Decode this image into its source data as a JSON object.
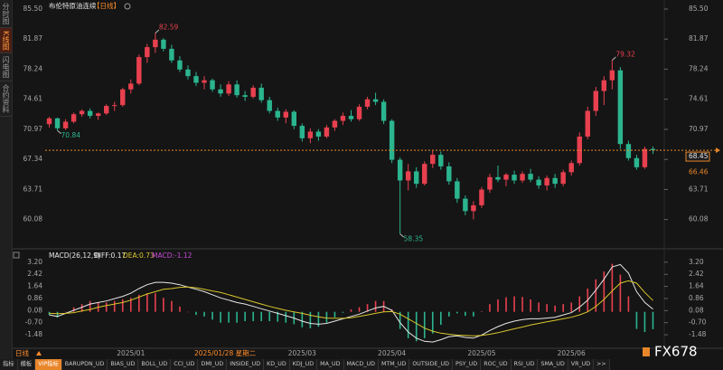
{
  "sidebar_tabs": [
    "分时图",
    "K线图",
    "闪电图",
    "合约资料"
  ],
  "chart_data": [
    {
      "type": "candlestick",
      "title": "布伦特原油连续",
      "period": "【日线】",
      "crosshair_label": "2025/01/28 星期二",
      "categories": [
        null,
        null,
        null,
        null,
        null,
        null,
        null,
        null,
        null,
        null,
        "2025/01",
        null,
        null,
        null,
        null,
        null,
        null,
        null,
        null,
        null,
        null,
        null,
        null,
        null,
        null,
        null,
        null,
        null,
        null,
        null,
        null,
        "2025/03",
        null,
        null,
        null,
        null,
        null,
        null,
        null,
        null,
        null,
        null,
        "2025/04",
        null,
        null,
        null,
        null,
        null,
        null,
        null,
        null,
        null,
        null,
        "2025/05",
        null,
        null,
        null,
        null,
        null,
        null,
        null,
        null,
        null,
        null,
        "2025/06",
        null,
        null,
        null,
        null,
        null,
        null,
        null,
        null,
        null,
        null
      ],
      "ohlc": [
        [
          71.6,
          72.5,
          71.2,
          72.3
        ],
        [
          72.3,
          72.4,
          70.84,
          71.1
        ],
        [
          71.1,
          72.2,
          70.9,
          71.9
        ],
        [
          71.9,
          73.0,
          71.7,
          72.8
        ],
        [
          72.8,
          73.4,
          72.5,
          73.2
        ],
        [
          73.2,
          73.5,
          72.3,
          72.6
        ],
        [
          72.6,
          73.0,
          72.1,
          72.9
        ],
        [
          72.9,
          74.0,
          72.7,
          73.8
        ],
        [
          73.8,
          74.3,
          73.2,
          73.9
        ],
        [
          73.9,
          76.0,
          73.7,
          75.8
        ],
        [
          75.8,
          77.0,
          75.3,
          76.5
        ],
        [
          76.5,
          80.0,
          76.3,
          79.7
        ],
        [
          79.7,
          81.3,
          79.0,
          80.9
        ],
        [
          80.9,
          82.59,
          80.2,
          81.8
        ],
        [
          81.8,
          82.0,
          80.4,
          80.7
        ],
        [
          80.7,
          81.2,
          79.0,
          79.3
        ],
        [
          79.3,
          79.8,
          77.9,
          78.2
        ],
        [
          78.2,
          78.7,
          77.0,
          77.4
        ],
        [
          77.4,
          77.9,
          76.2,
          76.6
        ],
        [
          76.6,
          77.4,
          75.8,
          76.9
        ],
        [
          76.9,
          77.1,
          75.5,
          75.8
        ],
        [
          75.8,
          76.4,
          74.9,
          75.3
        ],
        [
          75.3,
          76.8,
          75.0,
          76.4
        ],
        [
          76.4,
          76.9,
          74.8,
          75.1
        ],
        [
          75.1,
          75.6,
          74.4,
          74.9
        ],
        [
          74.9,
          76.3,
          74.7,
          76.0
        ],
        [
          76.0,
          76.5,
          74.2,
          74.5
        ],
        [
          74.5,
          74.9,
          72.9,
          73.2
        ],
        [
          73.2,
          73.6,
          72.0,
          72.4
        ],
        [
          72.4,
          73.4,
          71.7,
          73.1
        ],
        [
          73.1,
          73.3,
          71.0,
          71.4
        ],
        [
          71.4,
          71.7,
          69.5,
          69.9
        ],
        [
          69.9,
          71.1,
          69.3,
          70.7
        ],
        [
          70.7,
          71.0,
          69.6,
          70.1
        ],
        [
          70.1,
          71.5,
          69.9,
          71.2
        ],
        [
          71.2,
          72.2,
          70.8,
          72.0
        ],
        [
          72.0,
          73.0,
          71.5,
          72.6
        ],
        [
          72.6,
          73.3,
          71.9,
          72.2
        ],
        [
          72.2,
          74.0,
          72.0,
          73.7
        ],
        [
          73.7,
          74.9,
          73.4,
          74.6
        ],
        [
          74.6,
          75.4,
          73.9,
          74.3
        ],
        [
          74.3,
          74.6,
          71.6,
          72.0
        ],
        [
          72.0,
          72.2,
          66.9,
          67.3
        ],
        [
          67.3,
          67.6,
          58.35,
          64.8
        ],
        [
          64.8,
          66.8,
          63.6,
          65.9
        ],
        [
          65.9,
          66.4,
          63.9,
          64.4
        ],
        [
          64.4,
          67.1,
          64.2,
          66.8
        ],
        [
          66.8,
          68.4,
          66.3,
          67.9
        ],
        [
          67.9,
          68.3,
          66.1,
          66.5
        ],
        [
          66.5,
          67.0,
          64.3,
          64.7
        ],
        [
          64.7,
          65.1,
          62.1,
          62.6
        ],
        [
          62.6,
          63.0,
          60.6,
          61.1
        ],
        [
          61.1,
          62.3,
          60.1,
          61.8
        ],
        [
          61.8,
          64.0,
          61.5,
          63.7
        ],
        [
          63.7,
          65.6,
          63.3,
          65.2
        ],
        [
          65.2,
          66.6,
          64.6,
          64.9
        ],
        [
          64.9,
          65.7,
          64.1,
          65.5
        ],
        [
          65.5,
          66.0,
          64.4,
          64.8
        ],
        [
          64.8,
          65.9,
          64.5,
          65.6
        ],
        [
          65.6,
          66.2,
          64.6,
          64.9
        ],
        [
          64.9,
          65.3,
          63.8,
          64.2
        ],
        [
          64.2,
          65.4,
          63.6,
          65.1
        ],
        [
          65.1,
          65.6,
          63.9,
          64.4
        ],
        [
          64.4,
          66.1,
          64.1,
          65.8
        ],
        [
          65.8,
          67.2,
          65.4,
          66.9
        ],
        [
          66.9,
          70.6,
          66.6,
          70.1
        ],
        [
          70.1,
          73.7,
          69.8,
          73.2
        ],
        [
          73.2,
          76.1,
          72.6,
          75.6
        ],
        [
          75.6,
          77.4,
          73.9,
          76.9
        ],
        [
          76.9,
          79.32,
          75.8,
          78.1
        ],
        [
          78.1,
          78.5,
          68.6,
          69.2
        ],
        [
          69.2,
          69.6,
          67.2,
          67.5
        ],
        [
          67.5,
          67.9,
          66.1,
          66.4
        ],
        [
          66.4,
          68.9,
          66.2,
          68.6
        ],
        [
          68.6,
          68.9,
          68.0,
          68.45
        ]
      ],
      "up_color": "#e8404f",
      "down_color": "#2bb58f",
      "last_price_color": "#e8862a",
      "reference_price": 66.46,
      "ylim": [
        59.5,
        85.5
      ],
      "yticks": [
        {
          "value": 85.5,
          "label": "85.50"
        },
        81.87,
        78.24,
        74.61,
        70.97,
        67.34,
        63.71,
        60.08
      ]
    },
    {
      "type": "macd",
      "title": "MACD(26,12,9)",
      "series": [
        {
          "label": "DIFF:0.17",
          "color": "#e6e6e6",
          "values": [
            -0.2,
            -0.3,
            -0.1,
            0.1,
            0.3,
            0.5,
            0.6,
            0.7,
            0.85,
            1.0,
            1.2,
            1.5,
            1.75,
            1.9,
            1.9,
            1.85,
            1.75,
            1.6,
            1.45,
            1.3,
            1.1,
            0.9,
            0.75,
            0.6,
            0.5,
            0.35,
            0.2,
            0.05,
            -0.1,
            -0.25,
            -0.4,
            -0.6,
            -0.75,
            -0.8,
            -0.75,
            -0.6,
            -0.45,
            -0.3,
            -0.15,
            0.05,
            0.25,
            0.35,
            0.1,
            -0.7,
            -1.3,
            -1.7,
            -1.9,
            -1.95,
            -1.8,
            -1.6,
            -1.55,
            -1.65,
            -1.7,
            -1.5,
            -1.2,
            -0.95,
            -0.75,
            -0.6,
            -0.5,
            -0.45,
            -0.45,
            -0.4,
            -0.35,
            -0.2,
            -0.05,
            0.3,
            0.75,
            1.4,
            2.1,
            2.9,
            3.05,
            2.5,
            1.3,
            0.6,
            0.17
          ]
        },
        {
          "label": "DEA:0.73",
          "color": "#d8c62c",
          "values": [
            -0.1,
            -0.12,
            -0.1,
            -0.05,
            0.05,
            0.15,
            0.3,
            0.4,
            0.5,
            0.6,
            0.75,
            0.95,
            1.15,
            1.3,
            1.45,
            1.5,
            1.58,
            1.6,
            1.55,
            1.45,
            1.35,
            1.25,
            1.1,
            0.95,
            0.8,
            0.65,
            0.5,
            0.35,
            0.22,
            0.1,
            0.0,
            -0.1,
            -0.22,
            -0.32,
            -0.4,
            -0.42,
            -0.42,
            -0.38,
            -0.3,
            -0.2,
            -0.1,
            0.0,
            0.02,
            -0.15,
            -0.45,
            -0.75,
            -1.05,
            -1.25,
            -1.38,
            -1.45,
            -1.5,
            -1.52,
            -1.55,
            -1.52,
            -1.45,
            -1.35,
            -1.22,
            -1.1,
            -0.98,
            -0.85,
            -0.75,
            -0.65,
            -0.55,
            -0.45,
            -0.35,
            -0.2,
            0.0,
            0.35,
            0.8,
            1.35,
            1.85,
            2.0,
            1.85,
            1.25,
            0.73
          ]
        },
        {
          "label": "MACD:-1.12",
          "color": "#c84ad8",
          "up_color": "#e8404f",
          "down_color": "#2bb58f",
          "values": [
            -0.2,
            -0.36,
            0,
            0.3,
            0.5,
            0.7,
            0.6,
            0.6,
            0.7,
            0.8,
            0.9,
            1.1,
            1.2,
            1.2,
            0.9,
            0.7,
            0.34,
            0,
            -0.2,
            -0.3,
            -0.5,
            -0.7,
            -0.7,
            -0.7,
            -0.6,
            -0.6,
            -0.6,
            -0.6,
            -0.64,
            -0.7,
            -0.8,
            -1.0,
            -1.06,
            -0.96,
            -0.7,
            -0.36,
            -0.06,
            0.16,
            0.3,
            0.5,
            0.7,
            0.7,
            0.16,
            -1.1,
            -1.7,
            -1.9,
            -1.7,
            -1.4,
            -0.84,
            -0.3,
            -0.1,
            -0.26,
            -0.3,
            0.04,
            0.5,
            0.8,
            0.94,
            1.0,
            0.96,
            0.8,
            0.6,
            0.5,
            0.4,
            0.5,
            0.6,
            1.0,
            1.5,
            2.1,
            2.6,
            3.1,
            2.4,
            1.0,
            -1.1,
            -1.3,
            -1.12
          ]
        }
      ],
      "ylim": [
        -2.06,
        3.6
      ],
      "yticks": [
        {
          "value": 3.2,
          "label": "3.20"
        },
        2.42,
        1.64,
        0.86,
        0.08,
        {
          "value": -0.7,
          "label": "-0.70"
        },
        -1.48
      ]
    }
  ],
  "footer": {
    "period": "日线",
    "tabs": [
      "指标",
      "模板",
      "VIP指标",
      "BARUPDN_UD",
      "BIAS_UD",
      "BOLL_UD",
      "CCI_UD",
      "DMI_UD",
      "INSIDE_UD",
      "KD_UD",
      "KDJ_UD",
      "MA_UD",
      "MACD_UD",
      "MTM_UD",
      "OUTSIDE_UD",
      "PSY_UD",
      "ROC_UD",
      "RSI_UD",
      "SMA_UD",
      "VR_UD",
      ">>"
    ],
    "watermark": "FX678"
  }
}
